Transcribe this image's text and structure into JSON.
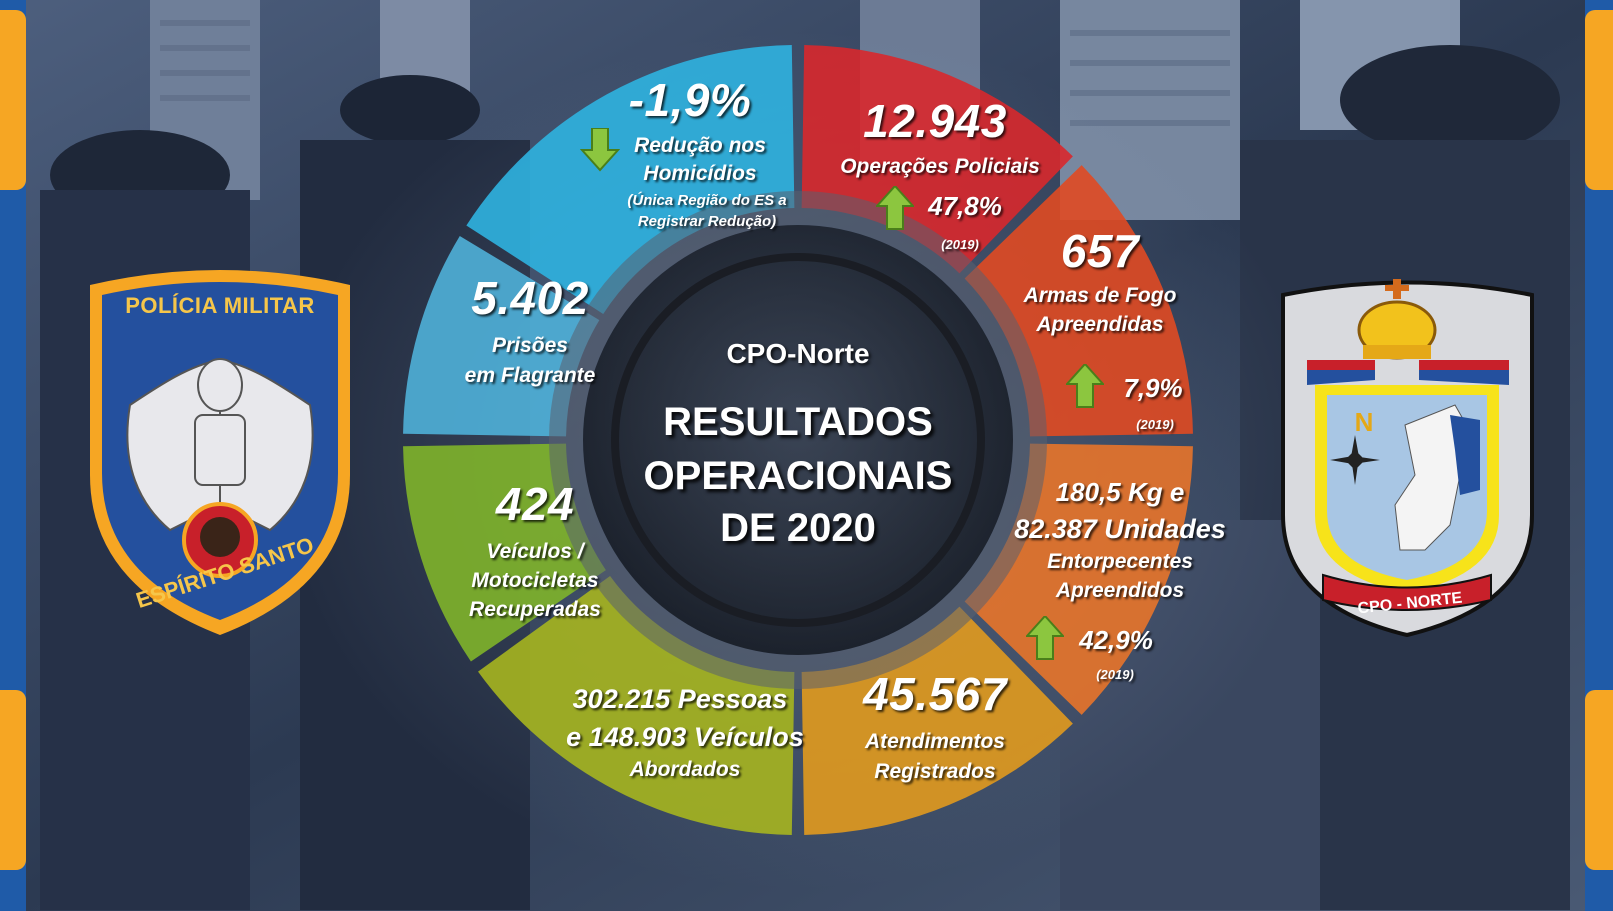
{
  "center": {
    "subtitle": "CPO-Norte",
    "title_line1": "RESULTADOS",
    "title_line2": "OPERACIONAIS",
    "title_line3": "DE 2020"
  },
  "segments": {
    "homicidios": {
      "value": "-1,9%",
      "label_line1": "Redução nos",
      "label_line2": "Homicídios",
      "note_line1": "(Única Região do ES a",
      "note_line2": "Registrar Redução)"
    },
    "operacoes": {
      "value": "12.943",
      "label": "Operações Policiais",
      "pct": "47,8%",
      "ref": "(2019)"
    },
    "armas": {
      "value": "657",
      "label_line1": "Armas de Fogo",
      "label_line2": "Apreendidas",
      "pct": "7,9%",
      "ref": "(2019)"
    },
    "entorpecentes": {
      "line1": "180,5 Kg e",
      "line2": "82.387 Unidades",
      "label_line1": "Entorpecentes",
      "label_line2": "Apreendidos",
      "pct": "42,9%",
      "ref": "(2019)"
    },
    "atendimentos": {
      "value": "45.567",
      "label_line1": "Atendimentos",
      "label_line2": "Registrados"
    },
    "abordagens": {
      "line1": "302.215 Pessoas",
      "line2": "e 148.903 Veículos",
      "label": "Abordados"
    },
    "veiculos": {
      "value": "424",
      "label_line1": "Veículos /",
      "label_line2": "Motocicletas",
      "label_line3": "Recuperadas"
    },
    "prisoes": {
      "value": "5.402",
      "label_line1": "Prisões",
      "label_line2": "em Flagrante"
    }
  },
  "badges": {
    "left": {
      "top_text": "POLÍCIA MILITAR",
      "bottom_text": "ESPÍRITO SANTO"
    },
    "right": {
      "letter": "N",
      "banner": "CPO - NORTE"
    }
  },
  "icons": {
    "up": "arrow-up-icon",
    "down": "arrow-down-icon"
  },
  "colors": {
    "homicidios": "#2fb3e0",
    "operacoes": "#d8282c",
    "armas": "#e04a22",
    "entorpecentes": "#e8742a",
    "atendimentos": "#e19a1e",
    "abordagens": "#a6b51f",
    "veiculos": "#7fb42a",
    "prisoes": "#4fb0d8",
    "frame_orange": "#f6a623",
    "frame_blue": "#1f5ba8"
  }
}
